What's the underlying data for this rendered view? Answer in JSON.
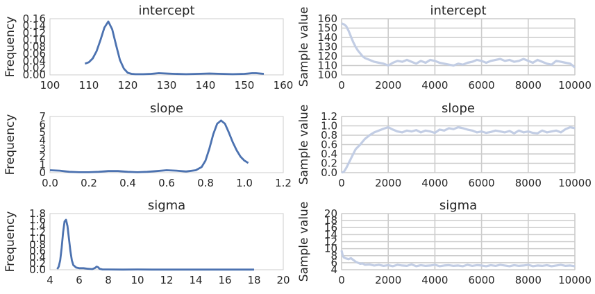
{
  "chart_data": [
    {
      "type": "line",
      "title": "intercept",
      "ylabel": "Frequency",
      "xlim": [
        100,
        160
      ],
      "ylim": [
        0,
        0.16
      ],
      "xticks": [
        "100",
        "110",
        "120",
        "130",
        "140",
        "150",
        "160"
      ],
      "yticks": [
        "0.00",
        "0.02",
        "0.04",
        "0.06",
        "0.08",
        "0.10",
        "0.12",
        "0.14",
        "0.16"
      ],
      "grid": false,
      "series": [
        {
          "color": "#4c72b0",
          "x": [
            109,
            110,
            111,
            112,
            113,
            114,
            115,
            116,
            117,
            118,
            119,
            120,
            121,
            122,
            124,
            126,
            128,
            130,
            132,
            135,
            138,
            141,
            144,
            147,
            150,
            152,
            153,
            154,
            155
          ],
          "y": [
            0.032,
            0.036,
            0.047,
            0.068,
            0.1,
            0.135,
            0.152,
            0.13,
            0.085,
            0.042,
            0.018,
            0.006,
            0.003,
            0.002,
            0.002,
            0.003,
            0.005,
            0.004,
            0.003,
            0.002,
            0.003,
            0.004,
            0.003,
            0.002,
            0.003,
            0.005,
            0.005,
            0.004,
            0.003
          ]
        }
      ]
    },
    {
      "type": "line",
      "title": "intercept",
      "ylabel": "Sample value",
      "xlim": [
        0,
        10000
      ],
      "ylim": [
        100,
        160
      ],
      "xticks": [
        "0",
        "2000",
        "4000",
        "6000",
        "8000",
        "10000"
      ],
      "yticks": [
        "100",
        "110",
        "120",
        "130",
        "140",
        "150",
        "160"
      ],
      "grid": true,
      "series": [
        {
          "color": "#c2cde4",
          "x": [
            0,
            100,
            200,
            300,
            400,
            500,
            600,
            700,
            800,
            900,
            1000,
            1200,
            1400,
            1600,
            1800,
            2000,
            2200,
            2400,
            2600,
            2800,
            3000,
            3200,
            3400,
            3600,
            3800,
            4000,
            4200,
            4400,
            4600,
            4800,
            5000,
            5200,
            5400,
            5600,
            5800,
            6000,
            6200,
            6400,
            6600,
            6800,
            7000,
            7200,
            7400,
            7600,
            7800,
            8000,
            8200,
            8400,
            8600,
            8800,
            9000,
            9200,
            9400,
            9600,
            9800,
            10000
          ],
          "y": [
            155,
            154,
            152,
            147,
            141,
            135,
            130,
            126,
            123,
            120,
            118,
            116,
            114,
            113,
            112,
            110,
            113,
            115,
            114,
            116,
            114,
            112,
            115,
            113,
            116,
            115,
            113,
            112,
            111,
            110,
            112,
            111,
            113,
            114,
            116,
            115,
            113,
            115,
            116,
            117,
            115,
            116,
            114,
            115,
            117,
            115,
            113,
            116,
            114,
            112,
            111,
            115,
            114,
            113,
            112,
            108
          ]
        }
      ]
    },
    {
      "type": "line",
      "title": "slope",
      "ylabel": "Frequency",
      "xlim": [
        0.0,
        1.2
      ],
      "ylim": [
        0,
        7
      ],
      "xticks": [
        "0.0",
        "0.2",
        "0.4",
        "0.6",
        "0.8",
        "1.0",
        "1.2"
      ],
      "yticks": [
        "0",
        "1",
        "2",
        "3",
        "4",
        "5",
        "6",
        "7"
      ],
      "grid": false,
      "series": [
        {
          "color": "#4c72b0",
          "x": [
            0.0,
            0.05,
            0.1,
            0.15,
            0.2,
            0.25,
            0.3,
            0.35,
            0.4,
            0.45,
            0.5,
            0.55,
            0.6,
            0.65,
            0.7,
            0.75,
            0.78,
            0.8,
            0.82,
            0.84,
            0.86,
            0.88,
            0.9,
            0.92,
            0.94,
            0.96,
            0.98,
            1.0,
            1.02
          ],
          "y": [
            0.3,
            0.25,
            0.1,
            0.05,
            0.05,
            0.1,
            0.2,
            0.2,
            0.1,
            0.05,
            0.1,
            0.2,
            0.3,
            0.25,
            0.15,
            0.3,
            0.7,
            1.5,
            3.0,
            4.8,
            6.1,
            6.5,
            6.1,
            5.0,
            3.8,
            2.8,
            2.0,
            1.5,
            1.2
          ]
        }
      ]
    },
    {
      "type": "line",
      "title": "slope",
      "ylabel": "Sample value",
      "xlim": [
        0,
        10000
      ],
      "ylim": [
        0.0,
        1.2
      ],
      "xticks": [
        "0",
        "2000",
        "4000",
        "6000",
        "8000",
        "10000"
      ],
      "yticks": [
        "0.0",
        "0.2",
        "0.4",
        "0.6",
        "0.8",
        "1.0",
        "1.2"
      ],
      "grid": true,
      "series": [
        {
          "color": "#c2cde4",
          "x": [
            0,
            100,
            200,
            300,
            400,
            500,
            600,
            700,
            800,
            900,
            1000,
            1200,
            1400,
            1600,
            1800,
            2000,
            2200,
            2400,
            2600,
            2800,
            3000,
            3200,
            3400,
            3600,
            3800,
            4000,
            4200,
            4400,
            4600,
            4800,
            5000,
            5200,
            5400,
            5600,
            5800,
            6000,
            6200,
            6400,
            6600,
            6800,
            7000,
            7200,
            7400,
            7600,
            7800,
            8000,
            8200,
            8400,
            8600,
            8800,
            9000,
            9200,
            9400,
            9600,
            9800,
            10000
          ],
          "y": [
            0.0,
            0.02,
            0.1,
            0.2,
            0.3,
            0.4,
            0.5,
            0.55,
            0.6,
            0.66,
            0.72,
            0.8,
            0.86,
            0.9,
            0.94,
            0.97,
            0.92,
            0.88,
            0.86,
            0.9,
            0.88,
            0.91,
            0.86,
            0.9,
            0.88,
            0.85,
            0.92,
            0.9,
            0.95,
            0.93,
            0.97,
            0.95,
            0.92,
            0.9,
            0.86,
            0.88,
            0.85,
            0.87,
            0.9,
            0.88,
            0.86,
            0.89,
            0.84,
            0.9,
            0.86,
            0.88,
            0.85,
            0.84,
            0.9,
            0.86,
            0.88,
            0.9,
            0.86,
            0.93,
            0.97,
            0.95
          ]
        }
      ]
    },
    {
      "type": "line",
      "title": "sigma",
      "ylabel": "Frequency",
      "xlim": [
        4,
        20
      ],
      "ylim": [
        0,
        1.8
      ],
      "xticks": [
        "4",
        "6",
        "8",
        "10",
        "12",
        "14",
        "16",
        "18",
        "20"
      ],
      "yticks": [
        "0.0",
        "0.2",
        "0.4",
        "0.6",
        "0.8",
        "1.0",
        "1.2",
        "1.4",
        "1.6",
        "1.8"
      ],
      "grid": false,
      "series": [
        {
          "color": "#4c72b0",
          "x": [
            4.5,
            4.6,
            4.7,
            4.8,
            4.9,
            5.0,
            5.1,
            5.2,
            5.3,
            5.4,
            5.5,
            5.6,
            5.8,
            6.0,
            6.3,
            6.6,
            6.9,
            7.1,
            7.2,
            7.3,
            7.4,
            7.6,
            8,
            9,
            10,
            11,
            12,
            13,
            14,
            15,
            16,
            17,
            18
          ],
          "y": [
            0.02,
            0.1,
            0.3,
            0.7,
            1.2,
            1.55,
            1.6,
            1.4,
            1.0,
            0.6,
            0.3,
            0.15,
            0.07,
            0.05,
            0.05,
            0.03,
            0.02,
            0.06,
            0.1,
            0.08,
            0.03,
            0.01,
            0.01,
            0.005,
            0.01,
            0.005,
            0.005,
            0.005,
            0.005,
            0.005,
            0.005,
            0.005,
            0.005
          ]
        }
      ]
    },
    {
      "type": "line",
      "title": "sigma",
      "ylabel": "Sample value",
      "xlim": [
        0,
        10000
      ],
      "ylim": [
        4,
        20
      ],
      "xticks": [
        "0",
        "2000",
        "4000",
        "6000",
        "8000",
        "10000"
      ],
      "yticks": [
        "4",
        "6",
        "8",
        "10",
        "12",
        "14",
        "16",
        "18",
        "20"
      ],
      "grid": true,
      "series": [
        {
          "color": "#c2cde4",
          "x": [
            0,
            50,
            100,
            200,
            300,
            400,
            500,
            600,
            700,
            800,
            900,
            1000,
            1200,
            1400,
            1600,
            1800,
            2000,
            2200,
            2400,
            2600,
            2800,
            3000,
            3200,
            3400,
            3600,
            3800,
            4000,
            4200,
            4400,
            4600,
            4800,
            5000,
            5200,
            5400,
            5600,
            5800,
            6000,
            6200,
            6400,
            6600,
            6800,
            7000,
            7200,
            7400,
            7600,
            7800,
            8000,
            8200,
            8400,
            8600,
            8800,
            9000,
            9200,
            9400,
            9600,
            9800,
            10000
          ],
          "y": [
            9.5,
            8.0,
            7.5,
            7.2,
            7.0,
            7.3,
            6.8,
            6.3,
            6.0,
            5.7,
            5.8,
            5.4,
            5.5,
            5.2,
            5.4,
            5.1,
            5.3,
            5.0,
            5.4,
            5.2,
            5.1,
            5.5,
            5.0,
            5.3,
            5.1,
            5.2,
            5.4,
            5.0,
            5.2,
            5.3,
            5.1,
            5.2,
            5.0,
            5.4,
            5.1,
            5.3,
            5.2,
            5.0,
            5.3,
            5.1,
            5.4,
            5.2,
            5.0,
            5.3,
            5.1,
            5.2,
            5.4,
            5.0,
            5.2,
            5.1,
            5.3,
            5.0,
            5.2,
            5.4,
            5.1,
            5.2,
            5.0
          ]
        }
      ]
    }
  ]
}
